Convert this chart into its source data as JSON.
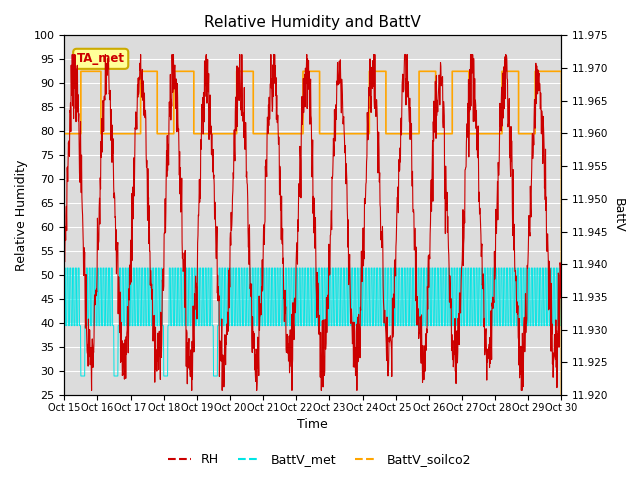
{
  "title": "Relative Humidity and BattV",
  "xlabel": "Time",
  "ylabel_left": "Relative Humidity",
  "ylabel_right": "BattV",
  "x_tick_labels": [
    "Oct 15",
    "Oct 16",
    "Oct 17",
    "Oct 18",
    "Oct 19",
    "Oct 20",
    "Oct 21",
    "Oct 22",
    "Oct 23",
    "Oct 24",
    "Oct 25",
    "Oct 26",
    "Oct 27",
    "Oct 28",
    "Oct 29",
    "Oct 30"
  ],
  "ylim_left": [
    25,
    100
  ],
  "ylim_right": [
    11.92,
    11.975
  ],
  "yticks_left": [
    25,
    30,
    35,
    40,
    45,
    50,
    55,
    60,
    65,
    70,
    75,
    80,
    85,
    90,
    95,
    100
  ],
  "yticks_right": [
    11.92,
    11.925,
    11.93,
    11.935,
    11.94,
    11.945,
    11.95,
    11.955,
    11.96,
    11.965,
    11.97,
    11.975
  ],
  "bg_color": "#dcdcdc",
  "grid_color": "#ffffff",
  "rh_color": "#cc0000",
  "battv_met_color": "#00e5e5",
  "battv_soilco2_color": "#ffa500",
  "annotation_text": "TA_met",
  "annotation_color": "#cc0000",
  "annotation_bg": "#ffff99",
  "annotation_border": "#ccaa00",
  "legend_rh_color": "#cc0000",
  "legend_bm_color": "#00e5e5",
  "legend_bs_color": "#ffa500"
}
